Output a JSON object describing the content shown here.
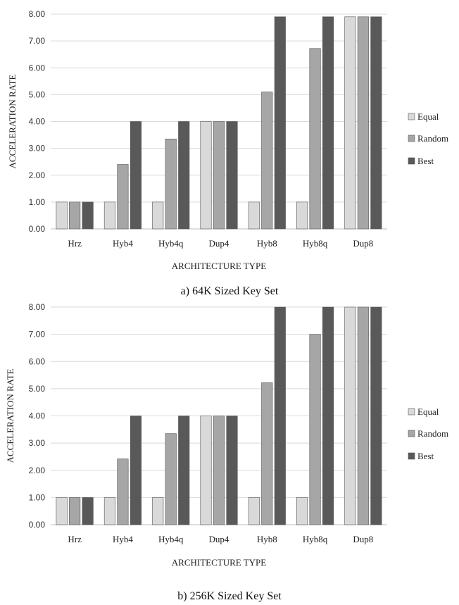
{
  "chart_data": [
    {
      "type": "bar",
      "caption": "a) 64K Sized Key Set",
      "xlabel": "ARCHITECTURE TYPE",
      "ylabel": "ACCELERATION RATE",
      "ylim": [
        0,
        8
      ],
      "yticks": [
        "0.00",
        "1.00",
        "2.00",
        "3.00",
        "4.00",
        "5.00",
        "6.00",
        "7.00",
        "8.00"
      ],
      "grid": true,
      "legend_position": "right",
      "categories": [
        "Hrz",
        "Hyb4",
        "Hyb4q",
        "Dup4",
        "Hyb8",
        "Hyb8q",
        "Dup8"
      ],
      "series": [
        {
          "name": "Equal",
          "color": "#d9d9d9",
          "values": [
            1.0,
            1.0,
            1.0,
            4.0,
            1.0,
            1.0,
            7.9
          ]
        },
        {
          "name": "Random",
          "color": "#a6a6a6",
          "values": [
            1.0,
            2.4,
            3.35,
            4.0,
            5.1,
            6.72,
            7.9
          ]
        },
        {
          "name": "Best",
          "color": "#595959",
          "values": [
            1.0,
            4.0,
            4.0,
            4.0,
            7.9,
            7.9,
            7.9
          ]
        }
      ]
    },
    {
      "type": "bar",
      "caption": "b) 256K Sized Key Set",
      "xlabel": "ARCHITECTURE TYPE",
      "ylabel": "ACCELERATION RATE",
      "ylim": [
        0,
        8
      ],
      "yticks": [
        "0.00",
        "1.00",
        "2.00",
        "3.00",
        "4.00",
        "5.00",
        "6.00",
        "7.00",
        "8.00"
      ],
      "grid": true,
      "legend_position": "right",
      "categories": [
        "Hrz",
        "Hyb4",
        "Hyb4q",
        "Dup4",
        "Hyb8",
        "Hyb8q",
        "Dup8"
      ],
      "series": [
        {
          "name": "Equal",
          "color": "#d9d9d9",
          "values": [
            1.0,
            1.0,
            1.0,
            4.0,
            1.0,
            1.0,
            8.0
          ]
        },
        {
          "name": "Random",
          "color": "#a6a6a6",
          "values": [
            1.0,
            2.42,
            3.35,
            4.0,
            5.22,
            7.0,
            8.0
          ]
        },
        {
          "name": "Best",
          "color": "#595959",
          "values": [
            1.0,
            4.0,
            4.0,
            4.0,
            8.0,
            8.0,
            8.0
          ]
        }
      ]
    }
  ]
}
